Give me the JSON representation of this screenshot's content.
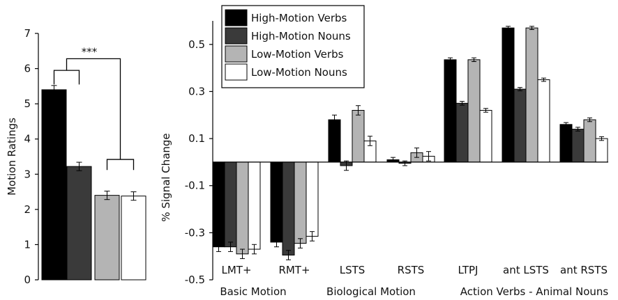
{
  "colors": {
    "black": "#000000",
    "dark_gray": "#3a3a3a",
    "light_gray": "#b4b4b4",
    "white": "#ffffff"
  },
  "chart_data": [
    {
      "type": "bar",
      "ylabel": "Motion Ratings",
      "ylim": [
        0,
        7
      ],
      "yticks": [
        "0",
        "1",
        "2",
        "3",
        "4",
        "5",
        "6",
        "7"
      ],
      "categories": [
        "High-Motion Verbs",
        "High-Motion Nouns",
        "Low-Motion Verbs",
        "Low-Motion Nouns"
      ],
      "values": [
        5.4,
        3.22,
        2.4,
        2.38
      ],
      "errors": [
        0.12,
        0.12,
        0.12,
        0.12
      ],
      "colors": [
        "#000000",
        "#3a3a3a",
        "#b4b4b4",
        "#ffffff"
      ],
      "annotation": "***",
      "grid": false
    },
    {
      "type": "bar",
      "ylabel": "% Signal Change",
      "ylim": [
        -0.5,
        0.6
      ],
      "yticks": [
        "0.5",
        "0.3",
        "0.1",
        "-0.1",
        "-0.3",
        "-0.5"
      ],
      "categories": [
        "LMT+",
        "RMT+",
        "LSTS",
        "RSTS",
        "LTPJ",
        "ant LSTS",
        "ant RSTS"
      ],
      "groups": [
        "Basic Motion",
        "Biological Motion",
        "Action Verbs - Animal Nouns"
      ],
      "legend_position": "top-left",
      "grid": false,
      "series": [
        {
          "name": "High-Motion Verbs",
          "color": "#000000",
          "values": [
            -0.36,
            -0.34,
            0.18,
            0.01,
            0.435,
            0.57,
            0.16
          ],
          "errors": [
            0.02,
            0.02,
            0.02,
            0.01,
            0.008,
            0.007,
            0.008
          ]
        },
        {
          "name": "High-Motion Nouns",
          "color": "#3a3a3a",
          "values": [
            -0.36,
            -0.395,
            -0.015,
            -0.005,
            0.25,
            0.31,
            0.14
          ],
          "errors": [
            0.02,
            0.02,
            0.02,
            0.01,
            0.008,
            0.007,
            0.008
          ]
        },
        {
          "name": "Low-Motion Verbs",
          "color": "#b4b4b4",
          "values": [
            -0.39,
            -0.345,
            0.22,
            0.04,
            0.435,
            0.57,
            0.18
          ],
          "errors": [
            0.02,
            0.02,
            0.02,
            0.02,
            0.008,
            0.007,
            0.008
          ]
        },
        {
          "name": "Low-Motion Nouns",
          "color": "#ffffff",
          "values": [
            -0.37,
            -0.315,
            0.09,
            0.025,
            0.22,
            0.35,
            0.1
          ],
          "errors": [
            0.02,
            0.02,
            0.02,
            0.02,
            0.008,
            0.007,
            0.008
          ]
        }
      ]
    }
  ]
}
